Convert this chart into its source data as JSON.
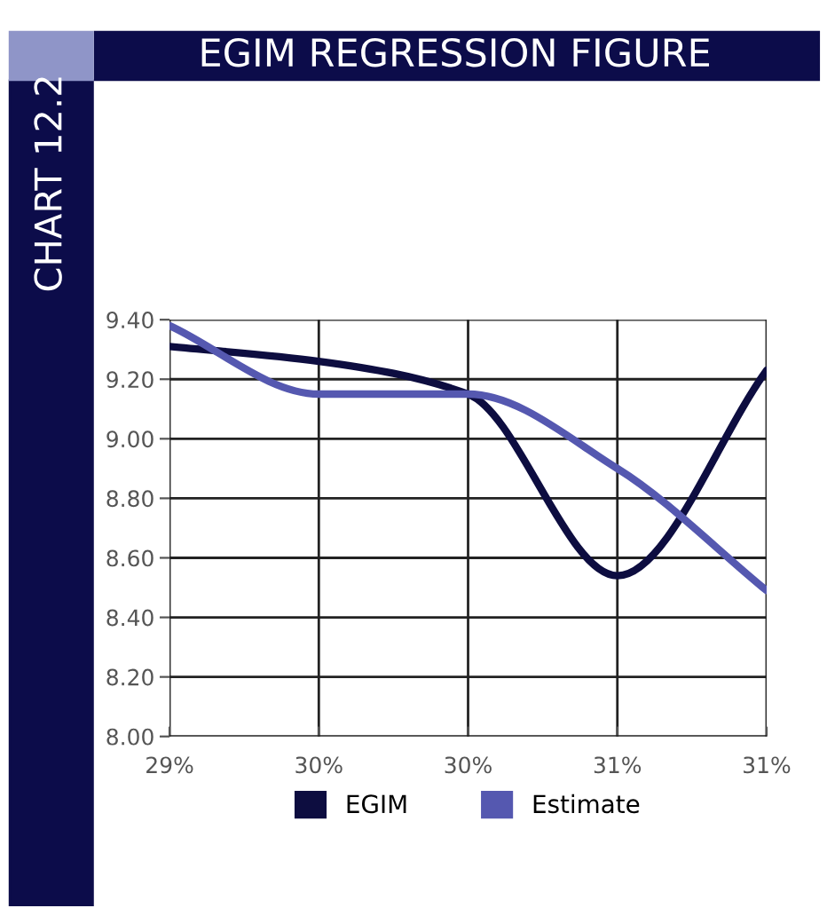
{
  "chart_data": {
    "type": "line",
    "title": "EGIM REGRESSION FIGURE",
    "annotations": [
      "CHART 12.2"
    ],
    "categories": [
      "29%",
      "30%",
      "30%",
      "31%",
      "31%"
    ],
    "series": [
      {
        "name": "EGIM",
        "color": "#0d0d40",
        "values": [
          9.31,
          9.26,
          9.15,
          8.54,
          9.23
        ]
      },
      {
        "name": "Estimate",
        "color": "#5558b0",
        "values": [
          9.38,
          9.15,
          9.15,
          8.9,
          8.49
        ]
      }
    ],
    "ylim": [
      8.0,
      9.4
    ],
    "yticks": [
      {
        "value": 8.0,
        "label": "8.00"
      },
      {
        "value": 8.2,
        "label": "8.20"
      },
      {
        "value": 8.4,
        "label": "8.40"
      },
      {
        "value": 8.6,
        "label": "8.60"
      },
      {
        "value": 8.8,
        "label": "8.80"
      },
      {
        "value": 9.0,
        "label": "9.00"
      },
      {
        "value": 9.2,
        "label": "9.20"
      },
      {
        "value": 9.4,
        "label": "9.40"
      }
    ],
    "grid": true,
    "legend": "bottom",
    "marker": "none",
    "line_style": "solid"
  }
}
